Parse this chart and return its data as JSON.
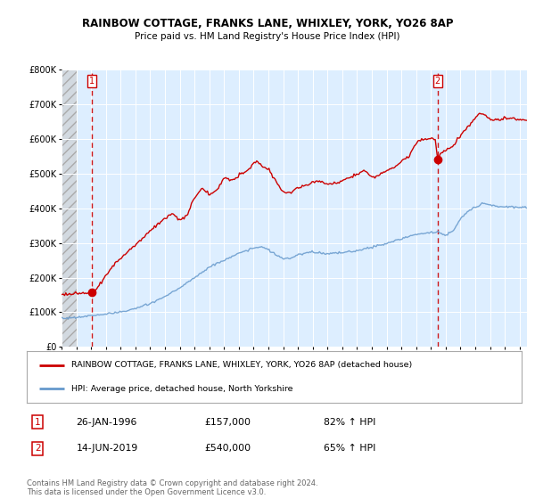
{
  "title1": "RAINBOW COTTAGE, FRANKS LANE, WHIXLEY, YORK, YO26 8AP",
  "title2": "Price paid vs. HM Land Registry's House Price Index (HPI)",
  "legend_line1": "RAINBOW COTTAGE, FRANKS LANE, WHIXLEY, YORK, YO26 8AP (detached house)",
  "legend_line2": "HPI: Average price, detached house, North Yorkshire",
  "annotation1_label": "1",
  "annotation1_date": "26-JAN-1996",
  "annotation1_price": "£157,000",
  "annotation1_hpi": "82% ↑ HPI",
  "annotation2_label": "2",
  "annotation2_date": "14-JUN-2019",
  "annotation2_price": "£540,000",
  "annotation2_hpi": "65% ↑ HPI",
  "footnote": "Contains HM Land Registry data © Crown copyright and database right 2024.\nThis data is licensed under the Open Government Licence v3.0.",
  "red_color": "#cc0000",
  "blue_color": "#6699cc",
  "background_color": "#ffffff",
  "plot_bg_color": "#ddeeff",
  "ylim": [
    0,
    800000
  ],
  "xlim_start": 1994.0,
  "xlim_end": 2025.5,
  "transaction1_x": 1996.07,
  "transaction1_y": 157000,
  "transaction2_x": 2019.45,
  "transaction2_y": 540000,
  "hatch_end": 1995.0
}
